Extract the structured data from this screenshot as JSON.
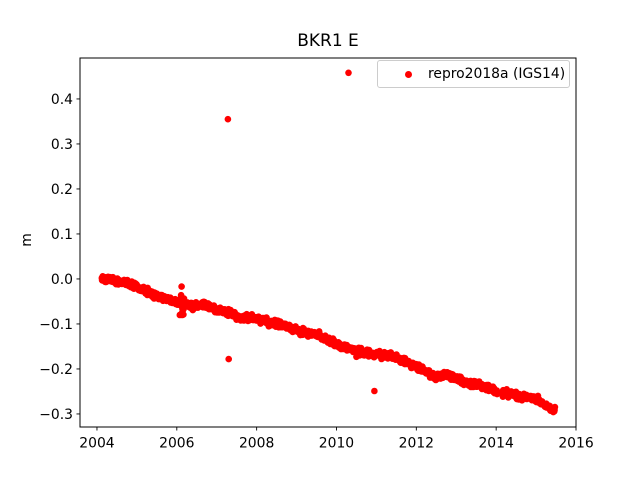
{
  "figure": {
    "title": "BKR1 E",
    "ylabel": "m",
    "background": "#ffffff"
  },
  "legend": {
    "position": "upper right",
    "border_color": "#cccccc",
    "entries": [
      {
        "label": "repro2018a (IGS14)",
        "marker": "dot",
        "color": "#ff0000"
      }
    ]
  },
  "chart_data": {
    "type": "scatter",
    "title": "BKR1 E",
    "xlabel": "",
    "ylabel": "m",
    "grid": false,
    "legend_position": "upper right",
    "marker_color": "#ff0000",
    "marker_radius_px": 3.3,
    "xlim": [
      2003.575,
      2016.0
    ],
    "ylim": [
      -0.329,
      0.491
    ],
    "xticks": [
      {
        "v": 2004,
        "label": "2004"
      },
      {
        "v": 2006,
        "label": "2006"
      },
      {
        "v": 2008,
        "label": "2008"
      },
      {
        "v": 2010,
        "label": "2010"
      },
      {
        "v": 2012,
        "label": "2012"
      },
      {
        "v": 2014,
        "label": "2014"
      },
      {
        "v": 2016,
        "label": "2016"
      }
    ],
    "yticks": [
      {
        "v": 0.4,
        "label": "0.4"
      },
      {
        "v": 0.3,
        "label": "0.3"
      },
      {
        "v": 0.2,
        "label": "0.2"
      },
      {
        "v": 0.1,
        "label": "0.1"
      },
      {
        "v": 0.0,
        "label": "0.0"
      },
      {
        "v": -0.1,
        "label": "−0.1"
      },
      {
        "v": -0.2,
        "label": "−0.2"
      },
      {
        "v": -0.3,
        "label": "−0.3"
      }
    ],
    "series": [
      {
        "name": "repro2018a (IGS14)",
        "description": "Dense GNSS east-coordinate time series declining nearly linearly from 0.00 m at 2004.1 to −0.29 m at 2015.5 (about −0.026 m/yr)",
        "trend_anchors": [
          [
            2004.12,
            0.0
          ],
          [
            2004.22,
            0.0
          ],
          [
            2004.35,
            -0.003
          ],
          [
            2004.55,
            -0.006
          ],
          [
            2004.75,
            -0.009
          ],
          [
            2004.9,
            -0.013
          ],
          [
            2005.1,
            -0.021
          ],
          [
            2005.35,
            -0.032
          ],
          [
            2005.55,
            -0.038
          ],
          [
            2005.75,
            -0.044
          ],
          [
            2005.95,
            -0.051
          ],
          [
            2006.15,
            -0.054
          ],
          [
            2006.4,
            -0.061
          ],
          [
            2006.65,
            -0.058
          ],
          [
            2006.9,
            -0.066
          ],
          [
            2007.15,
            -0.071
          ],
          [
            2007.4,
            -0.08
          ],
          [
            2007.6,
            -0.088
          ],
          [
            2007.85,
            -0.086
          ],
          [
            2008.1,
            -0.091
          ],
          [
            2008.35,
            -0.095
          ],
          [
            2008.6,
            -0.101
          ],
          [
            2008.85,
            -0.108
          ],
          [
            2009.1,
            -0.117
          ],
          [
            2009.35,
            -0.122
          ],
          [
            2009.6,
            -0.128
          ],
          [
            2009.85,
            -0.14
          ],
          [
            2010.05,
            -0.148
          ],
          [
            2010.3,
            -0.153
          ],
          [
            2010.55,
            -0.161
          ],
          [
            2010.8,
            -0.165
          ],
          [
            2011.05,
            -0.169
          ],
          [
            2011.35,
            -0.17
          ],
          [
            2011.6,
            -0.18
          ],
          [
            2011.9,
            -0.191
          ],
          [
            2012.15,
            -0.202
          ],
          [
            2012.5,
            -0.218
          ],
          [
            2012.75,
            -0.212
          ],
          [
            2013.0,
            -0.22
          ],
          [
            2013.3,
            -0.231
          ],
          [
            2013.6,
            -0.236
          ],
          [
            2013.85,
            -0.244
          ],
          [
            2014.03,
            -0.25
          ],
          [
            2014.14,
            -0.252
          ],
          [
            2014.45,
            -0.258
          ],
          [
            2014.65,
            -0.264
          ],
          [
            2014.85,
            -0.262
          ],
          [
            2015.05,
            -0.271
          ],
          [
            2015.25,
            -0.282
          ],
          [
            2015.48,
            -0.293
          ]
        ],
        "gaps": [
          [
            2014.03,
            2014.14
          ]
        ],
        "cluster": {
          "x_range": [
            2006.07,
            2006.18
          ],
          "y_range": [
            -0.084,
            -0.036
          ],
          "count": 16
        },
        "outliers": [
          [
            2006.12,
            -0.017
          ],
          [
            2007.28,
            0.355
          ],
          [
            2007.3,
            -0.178
          ],
          [
            2010.3,
            0.458
          ],
          [
            2010.5,
            -0.173
          ],
          [
            2010.95,
            -0.249
          ]
        ],
        "noise_std": 0.0035,
        "sample_step_years": 0.008
      }
    ]
  }
}
